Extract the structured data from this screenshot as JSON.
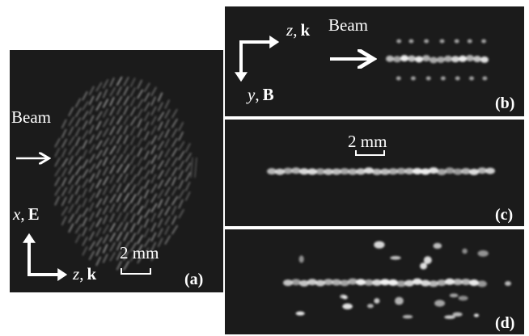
{
  "panels": [
    {
      "label": "(a)",
      "beam": "Beam",
      "scale": "2 mm",
      "axis_up": {
        "symbol": "x",
        "separator": ",",
        "vector": "E"
      },
      "axis_right": {
        "symbol": "z",
        "separator": ",",
        "vector": "k"
      }
    },
    {
      "label": "(b)",
      "beam": "Beam",
      "axis_right": {
        "symbol": "z",
        "separator": ",",
        "vector": "k"
      },
      "axis_down": {
        "symbol": "y",
        "separator": ",",
        "vector": "B"
      }
    },
    {
      "label": "(c)",
      "scale": "2 mm"
    },
    {
      "label": "(d)"
    }
  ]
}
